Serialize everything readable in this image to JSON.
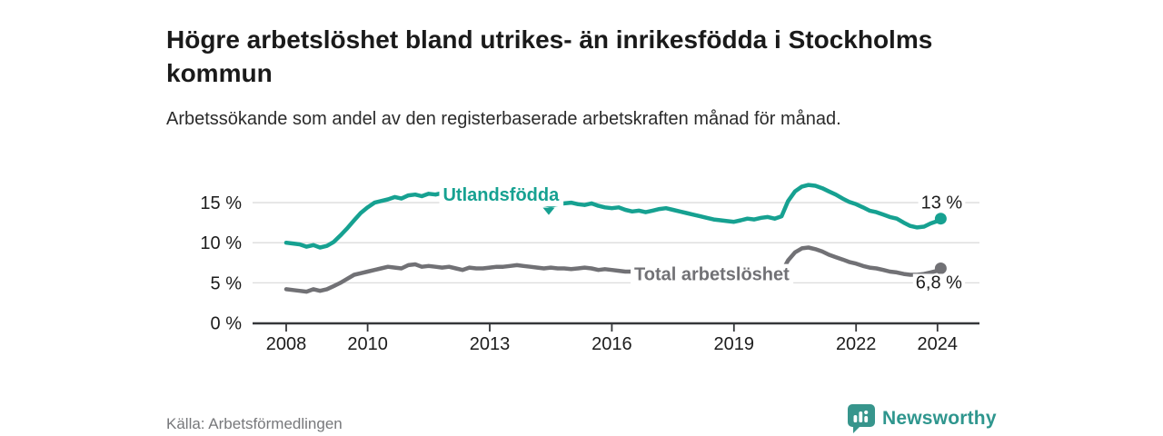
{
  "header": {
    "title": "Högre arbetslöshet bland utrikes- än inrikesfödda i Stockholms kommun",
    "subtitle": "Arbetssökande som andel av den registerbaserade arbetskraften månad för månad."
  },
  "footer": {
    "source": "Källa: Arbetsförmedlingen",
    "logo_text": "Newsworthy",
    "logo_icon": "bar-chart-speech-bubble-icon"
  },
  "colors": {
    "series_utlandsfodda": "#16a191",
    "series_total": "#717175",
    "grid": "#dcdcdc",
    "axis": "#35373a",
    "text": "#1c1c1c",
    "muted_text": "#77787b",
    "logo_teal": "#37958c",
    "background": "#ffffff"
  },
  "chart_data": {
    "type": "line",
    "title": "",
    "xlabel": "",
    "ylabel": "",
    "legend_position": "inline-labels",
    "x_axis": {
      "ticks": [
        2008,
        2010,
        2013,
        2016,
        2019,
        2022,
        2024
      ],
      "tick_labels": [
        "2008",
        "2010",
        "2013",
        "2016",
        "2019",
        "2022",
        "2024"
      ],
      "range": [
        2007.2,
        2025.0
      ]
    },
    "y_axis": {
      "ticks": [
        0,
        5,
        10,
        15
      ],
      "tick_labels": [
        "0 %",
        "5 %",
        "10 %",
        "15 %"
      ],
      "range": [
        0,
        19
      ],
      "grid": true
    },
    "annotations": [
      {
        "shape": "triangle-down",
        "x": 2014.45,
        "y": 14.6,
        "color": "#16a191"
      }
    ],
    "series": [
      {
        "id": "utlandsfodda",
        "name": "Utlandsfödda",
        "color": "#16a191",
        "label": {
          "x": 2011.85,
          "y": 16.0
        },
        "end_label": {
          "text": "13 %",
          "dx": 1,
          "dy": -11
        },
        "points": [
          [
            2008.0,
            10.0
          ],
          [
            2008.17,
            9.9
          ],
          [
            2008.33,
            9.8
          ],
          [
            2008.5,
            9.5
          ],
          [
            2008.67,
            9.7
          ],
          [
            2008.83,
            9.4
          ],
          [
            2009.0,
            9.6
          ],
          [
            2009.17,
            10.1
          ],
          [
            2009.33,
            10.9
          ],
          [
            2009.5,
            11.8
          ],
          [
            2009.67,
            12.8
          ],
          [
            2009.83,
            13.7
          ],
          [
            2010.0,
            14.4
          ],
          [
            2010.17,
            15.0
          ],
          [
            2010.33,
            15.2
          ],
          [
            2010.5,
            15.4
          ],
          [
            2010.67,
            15.7
          ],
          [
            2010.83,
            15.5
          ],
          [
            2011.0,
            15.9
          ],
          [
            2011.17,
            16.0
          ],
          [
            2011.33,
            15.8
          ],
          [
            2011.5,
            16.1
          ],
          [
            2011.67,
            16.0
          ],
          [
            2011.83,
            16.2
          ],
          [
            2012.0,
            16.0
          ],
          [
            2012.17,
            15.8
          ],
          [
            2012.33,
            16.0
          ],
          [
            2012.5,
            15.9
          ],
          [
            2012.67,
            15.7
          ],
          [
            2012.83,
            15.8
          ],
          [
            2013.0,
            15.6
          ],
          [
            2013.17,
            15.7
          ],
          [
            2013.33,
            15.5
          ],
          [
            2013.5,
            15.4
          ],
          [
            2013.67,
            15.3
          ],
          [
            2013.83,
            15.2
          ],
          [
            2014.0,
            15.1
          ],
          [
            2014.17,
            15.0
          ],
          [
            2014.33,
            14.8
          ],
          [
            2014.5,
            14.6
          ],
          [
            2014.67,
            14.8
          ],
          [
            2014.83,
            14.9
          ],
          [
            2015.0,
            15.0
          ],
          [
            2015.17,
            14.8
          ],
          [
            2015.33,
            14.7
          ],
          [
            2015.5,
            14.9
          ],
          [
            2015.67,
            14.6
          ],
          [
            2015.83,
            14.4
          ],
          [
            2016.0,
            14.3
          ],
          [
            2016.17,
            14.4
          ],
          [
            2016.33,
            14.1
          ],
          [
            2016.5,
            13.9
          ],
          [
            2016.67,
            14.0
          ],
          [
            2016.83,
            13.8
          ],
          [
            2017.0,
            14.0
          ],
          [
            2017.17,
            14.2
          ],
          [
            2017.33,
            14.3
          ],
          [
            2017.5,
            14.1
          ],
          [
            2017.67,
            13.9
          ],
          [
            2017.83,
            13.7
          ],
          [
            2018.0,
            13.5
          ],
          [
            2018.17,
            13.3
          ],
          [
            2018.33,
            13.1
          ],
          [
            2018.5,
            12.9
          ],
          [
            2018.67,
            12.8
          ],
          [
            2018.83,
            12.7
          ],
          [
            2019.0,
            12.6
          ],
          [
            2019.17,
            12.8
          ],
          [
            2019.33,
            13.0
          ],
          [
            2019.5,
            12.9
          ],
          [
            2019.67,
            13.1
          ],
          [
            2019.83,
            13.2
          ],
          [
            2020.0,
            13.0
          ],
          [
            2020.17,
            13.3
          ],
          [
            2020.33,
            15.2
          ],
          [
            2020.5,
            16.4
          ],
          [
            2020.67,
            17.0
          ],
          [
            2020.83,
            17.2
          ],
          [
            2021.0,
            17.1
          ],
          [
            2021.17,
            16.8
          ],
          [
            2021.33,
            16.4
          ],
          [
            2021.5,
            16.0
          ],
          [
            2021.67,
            15.5
          ],
          [
            2021.83,
            15.1
          ],
          [
            2022.0,
            14.8
          ],
          [
            2022.17,
            14.4
          ],
          [
            2022.33,
            14.0
          ],
          [
            2022.5,
            13.8
          ],
          [
            2022.67,
            13.5
          ],
          [
            2022.83,
            13.2
          ],
          [
            2023.0,
            13.0
          ],
          [
            2023.17,
            12.5
          ],
          [
            2023.33,
            12.1
          ],
          [
            2023.5,
            11.9
          ],
          [
            2023.67,
            12.0
          ],
          [
            2023.83,
            12.4
          ],
          [
            2024.0,
            12.7
          ],
          [
            2024.08,
            13.0
          ]
        ]
      },
      {
        "id": "total",
        "name": "Total arbetslöshet",
        "color": "#717175",
        "label": {
          "x": 2016.55,
          "y": 6.1
        },
        "end_label": {
          "text": "6,8 %",
          "dx": -2,
          "dy": 22
        },
        "points": [
          [
            2008.0,
            4.2
          ],
          [
            2008.17,
            4.1
          ],
          [
            2008.33,
            4.0
          ],
          [
            2008.5,
            3.9
          ],
          [
            2008.67,
            4.2
          ],
          [
            2008.83,
            4.0
          ],
          [
            2009.0,
            4.2
          ],
          [
            2009.17,
            4.6
          ],
          [
            2009.33,
            5.0
          ],
          [
            2009.5,
            5.5
          ],
          [
            2009.67,
            6.0
          ],
          [
            2009.83,
            6.2
          ],
          [
            2010.0,
            6.4
          ],
          [
            2010.17,
            6.6
          ],
          [
            2010.33,
            6.8
          ],
          [
            2010.5,
            7.0
          ],
          [
            2010.67,
            6.9
          ],
          [
            2010.83,
            6.8
          ],
          [
            2011.0,
            7.2
          ],
          [
            2011.17,
            7.3
          ],
          [
            2011.33,
            7.0
          ],
          [
            2011.5,
            7.1
          ],
          [
            2011.67,
            7.0
          ],
          [
            2011.83,
            6.9
          ],
          [
            2012.0,
            7.0
          ],
          [
            2012.17,
            6.8
          ],
          [
            2012.33,
            6.6
          ],
          [
            2012.5,
            6.9
          ],
          [
            2012.67,
            6.8
          ],
          [
            2012.83,
            6.8
          ],
          [
            2013.0,
            6.9
          ],
          [
            2013.17,
            7.0
          ],
          [
            2013.33,
            7.0
          ],
          [
            2013.5,
            7.1
          ],
          [
            2013.67,
            7.2
          ],
          [
            2013.83,
            7.1
          ],
          [
            2014.0,
            7.0
          ],
          [
            2014.17,
            6.9
          ],
          [
            2014.33,
            6.8
          ],
          [
            2014.5,
            6.9
          ],
          [
            2014.67,
            6.8
          ],
          [
            2014.83,
            6.8
          ],
          [
            2015.0,
            6.7
          ],
          [
            2015.17,
            6.8
          ],
          [
            2015.33,
            6.9
          ],
          [
            2015.5,
            6.8
          ],
          [
            2015.67,
            6.6
          ],
          [
            2015.83,
            6.7
          ],
          [
            2016.0,
            6.6
          ],
          [
            2016.17,
            6.5
          ],
          [
            2016.33,
            6.4
          ],
          [
            2016.5,
            6.4
          ],
          [
            2016.67,
            6.3
          ],
          [
            2016.83,
            6.3
          ],
          [
            2017.0,
            6.4
          ],
          [
            2017.17,
            6.3
          ],
          [
            2017.33,
            6.2
          ],
          [
            2017.5,
            6.2
          ],
          [
            2017.67,
            6.1
          ],
          [
            2017.83,
            6.1
          ],
          [
            2018.0,
            6.0
          ],
          [
            2018.17,
            6.0
          ],
          [
            2018.33,
            5.9
          ],
          [
            2018.5,
            6.0
          ],
          [
            2018.67,
            5.9
          ],
          [
            2018.83,
            5.9
          ],
          [
            2019.0,
            5.8
          ],
          [
            2019.17,
            5.9
          ],
          [
            2019.33,
            6.0
          ],
          [
            2019.5,
            5.9
          ],
          [
            2019.67,
            6.0
          ],
          [
            2019.83,
            6.0
          ],
          [
            2020.0,
            6.0
          ],
          [
            2020.17,
            6.3
          ],
          [
            2020.33,
            7.8
          ],
          [
            2020.5,
            8.8
          ],
          [
            2020.67,
            9.3
          ],
          [
            2020.83,
            9.4
          ],
          [
            2021.0,
            9.2
          ],
          [
            2021.17,
            8.9
          ],
          [
            2021.33,
            8.5
          ],
          [
            2021.5,
            8.2
          ],
          [
            2021.67,
            7.9
          ],
          [
            2021.83,
            7.6
          ],
          [
            2022.0,
            7.4
          ],
          [
            2022.17,
            7.1
          ],
          [
            2022.33,
            6.9
          ],
          [
            2022.5,
            6.8
          ],
          [
            2022.67,
            6.6
          ],
          [
            2022.83,
            6.4
          ],
          [
            2023.0,
            6.3
          ],
          [
            2023.17,
            6.1
          ],
          [
            2023.33,
            6.0
          ],
          [
            2023.5,
            6.0
          ],
          [
            2023.67,
            6.1
          ],
          [
            2023.83,
            6.3
          ],
          [
            2024.0,
            6.5
          ],
          [
            2024.08,
            6.8
          ]
        ]
      }
    ]
  }
}
